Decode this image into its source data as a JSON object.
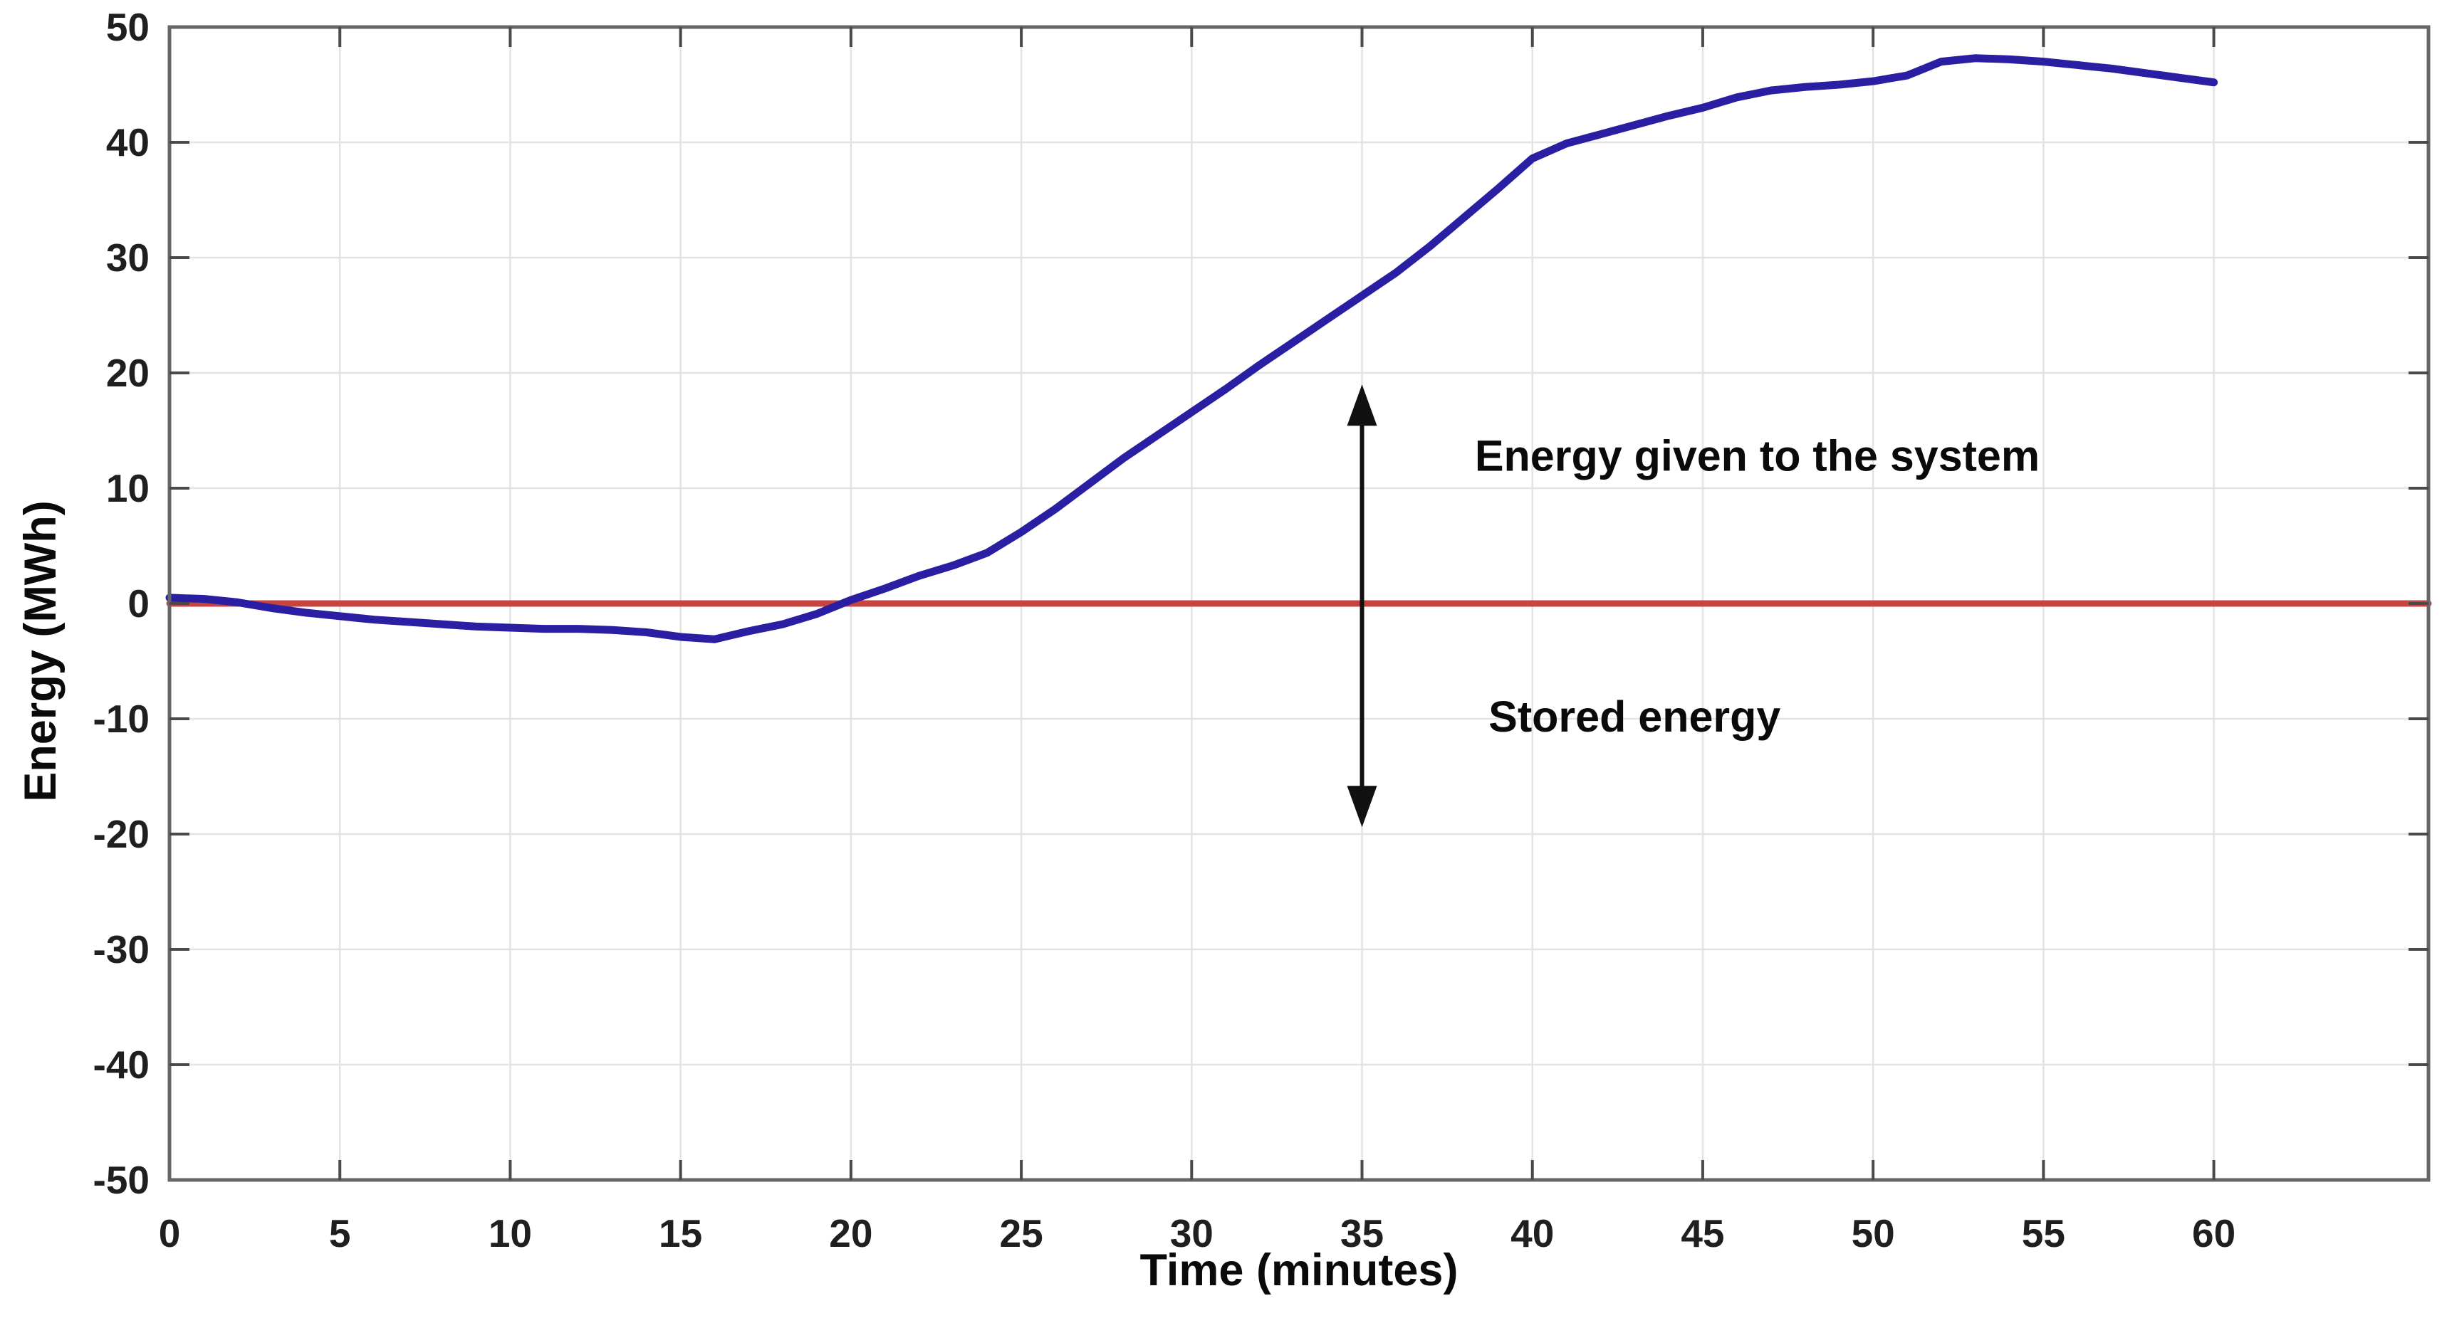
{
  "figure": {
    "background": "#ffffff"
  },
  "chart_data": {
    "type": "line",
    "title": "",
    "xlabel": "Time (minutes)",
    "ylabel": "Energy (MWh)",
    "xlim": [
      0,
      66.3
    ],
    "ylim": [
      -50,
      50
    ],
    "x_ticks": [
      0,
      5,
      10,
      15,
      20,
      25,
      30,
      35,
      40,
      45,
      50,
      55,
      60
    ],
    "y_ticks": [
      -50,
      -40,
      -30,
      -20,
      -10,
      0,
      10,
      20,
      30,
      40,
      50
    ],
    "grid": true,
    "legend": "none",
    "axis_color": "#666666",
    "grid_color": "#e3e3e3",
    "tick_color": "#4a4a4a",
    "tick_label_color": "#1f1f1f",
    "series": [
      {
        "name": "energy-curve",
        "color": "#2a1fa3",
        "width": 11,
        "points": [
          [
            0,
            0.5
          ],
          [
            1,
            0.4
          ],
          [
            2,
            0.1
          ],
          [
            3,
            -0.4
          ],
          [
            4,
            -0.8
          ],
          [
            5,
            -1.1
          ],
          [
            6,
            -1.4
          ],
          [
            7,
            -1.6
          ],
          [
            8,
            -1.8
          ],
          [
            9,
            -2.0
          ],
          [
            10,
            -2.1
          ],
          [
            11,
            -2.2
          ],
          [
            12,
            -2.2
          ],
          [
            13,
            -2.3
          ],
          [
            14,
            -2.5
          ],
          [
            15,
            -2.9
          ],
          [
            16,
            -3.1
          ],
          [
            17,
            -2.4
          ],
          [
            18,
            -1.8
          ],
          [
            19,
            -0.9
          ],
          [
            20,
            0.3
          ],
          [
            21,
            1.3
          ],
          [
            22,
            2.4
          ],
          [
            23,
            3.3
          ],
          [
            24,
            4.4
          ],
          [
            25,
            6.2
          ],
          [
            26,
            8.2
          ],
          [
            27,
            10.4
          ],
          [
            28,
            12.6
          ],
          [
            29,
            14.6
          ],
          [
            30,
            16.6
          ],
          [
            31,
            18.6
          ],
          [
            32,
            20.7
          ],
          [
            33,
            22.7
          ],
          [
            34,
            24.7
          ],
          [
            35,
            26.7
          ],
          [
            36,
            28.7
          ],
          [
            37,
            31.0
          ],
          [
            38,
            33.5
          ],
          [
            39,
            36.0
          ],
          [
            40,
            38.6
          ],
          [
            41,
            39.9
          ],
          [
            42,
            40.7
          ],
          [
            43,
            41.5
          ],
          [
            44,
            42.3
          ],
          [
            45,
            43.0
          ],
          [
            46,
            43.9
          ],
          [
            47,
            44.5
          ],
          [
            48,
            44.8
          ],
          [
            49,
            45.0
          ],
          [
            50,
            45.3
          ],
          [
            51,
            45.8
          ],
          [
            52,
            47.0
          ],
          [
            53,
            47.3
          ],
          [
            54,
            47.2
          ],
          [
            55,
            47.0
          ],
          [
            56,
            46.7
          ],
          [
            57,
            46.4
          ],
          [
            58,
            46.0
          ],
          [
            59,
            45.6
          ],
          [
            60,
            45.2
          ]
        ]
      },
      {
        "name": "zero-reference-line",
        "color": "#c84440",
        "width": 9,
        "points": [
          [
            0,
            0
          ],
          [
            66.3,
            0
          ]
        ]
      }
    ],
    "annotations": {
      "arrow": {
        "t": 35,
        "v_top": 19.0,
        "v_bottom": -19.4,
        "color": "#111111"
      },
      "labels": [
        {
          "text": "Energy given to the system",
          "t": 46.6,
          "v": 12.8
        },
        {
          "text": "Stored energy",
          "t": 43.0,
          "v": -9.8
        }
      ]
    }
  }
}
